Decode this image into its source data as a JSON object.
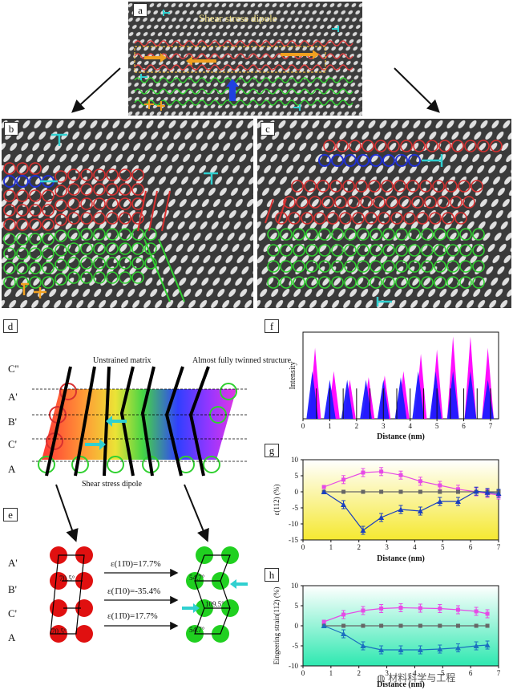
{
  "panels": {
    "a": {
      "label": "a",
      "annotation": "Shear stress dipole"
    },
    "b": {
      "label": "b"
    },
    "c": {
      "label": "c"
    },
    "d": {
      "label": "d",
      "layers": [
        "C''",
        "A'",
        "B'",
        "C'",
        "A"
      ],
      "unstrained_label": "Unstrained matrix",
      "twinned_label": "Almost fully twinned structure",
      "dipole_label": "Shear stress dipole"
    },
    "e": {
      "label": "e",
      "layers": [
        "A'",
        "B'",
        "C'",
        "A"
      ],
      "strains": [
        {
          "text": "ε(11̄0)=17.7%"
        },
        {
          "text": "ε(1̄10)=-35.4%"
        },
        {
          "text": "ε(11̄0)=17.7%"
        }
      ],
      "angles_left": [
        "70.5°",
        "70.5°"
      ],
      "angles_right": [
        "54.7°",
        "109.5°",
        "54.7°"
      ]
    },
    "f": {
      "label": "f"
    },
    "g": {
      "label": "g"
    },
    "h": {
      "label": "h"
    }
  },
  "chart_data": [
    {
      "type": "area",
      "panel": "f",
      "xlabel": "Distance (nm)",
      "ylabel": "Intensity",
      "xlim": [
        0,
        7.3
      ],
      "xticks": [
        "0",
        "1",
        "2",
        "3",
        "4",
        "5",
        "6",
        "7"
      ],
      "series": [
        {
          "color": "#ff00ff",
          "peaks_x": [
            0.45,
            1.15,
            1.75,
            2.45,
            3.05,
            3.75,
            4.4,
            5.0,
            5.6,
            6.25,
            6.9
          ],
          "peaks_y": [
            0.82,
            0.55,
            0.45,
            0.48,
            0.5,
            0.55,
            0.75,
            0.8,
            0.95,
            0.95,
            0.82
          ]
        },
        {
          "color": "#1a1aff",
          "peaks_x": [
            0.35,
            1.0,
            1.65,
            2.35,
            3.0,
            3.65,
            4.3,
            4.95,
            5.6,
            6.25,
            6.9
          ],
          "peaks_y": [
            0.55,
            0.45,
            0.45,
            0.45,
            0.45,
            0.48,
            0.55,
            0.55,
            0.55,
            0.55,
            0.45
          ]
        }
      ]
    },
    {
      "type": "line",
      "panel": "g",
      "xlabel": "Distance (nm)",
      "ylabel": "ε(112) (%)",
      "xlim": [
        0,
        7
      ],
      "ylim": [
        -15,
        10
      ],
      "xticks": [
        0,
        1,
        2,
        3,
        4,
        5,
        6,
        7
      ],
      "yticks": [
        10,
        5,
        0,
        -5,
        -10,
        -15
      ],
      "x": [
        0.75,
        1.45,
        2.15,
        2.8,
        3.5,
        4.2,
        4.9,
        5.55,
        6.2,
        6.6,
        7.0
      ],
      "series": [
        {
          "color": "#e64ae6",
          "values": [
            1.5,
            3.8,
            6.0,
            6.3,
            5.2,
            3.3,
            2.0,
            0.8,
            0.0,
            -0.5,
            -1.0
          ]
        },
        {
          "color": "#666666",
          "values": [
            0,
            0,
            0,
            0,
            0,
            0,
            0,
            0,
            0,
            0,
            0
          ]
        },
        {
          "color": "#1a3fbf",
          "values": [
            0,
            -4.0,
            -12.0,
            -8.0,
            -5.5,
            -6.0,
            -3.0,
            -3.0,
            0.2,
            -0.2,
            -0.5
          ]
        }
      ]
    },
    {
      "type": "line",
      "panel": "h",
      "xlabel": "Distance (nm)",
      "ylabel": "Eingeering strain(112) (%)",
      "xlim": [
        0,
        7
      ],
      "ylim": [
        -10,
        10
      ],
      "xticks": [
        0,
        1,
        2,
        3,
        4,
        5,
        6,
        7
      ],
      "yticks": [
        10,
        5,
        0,
        -5,
        -10
      ],
      "x": [
        0.75,
        1.45,
        2.15,
        2.8,
        3.5,
        4.2,
        4.9,
        5.55,
        6.2,
        6.6
      ],
      "series": [
        {
          "color": "#e64ae6",
          "values": [
            1.0,
            2.8,
            3.8,
            4.3,
            4.5,
            4.4,
            4.3,
            4.0,
            3.6,
            3.0
          ]
        },
        {
          "color": "#666666",
          "values": [
            0,
            0,
            0,
            0,
            0,
            0,
            0,
            0,
            0,
            0
          ]
        },
        {
          "color": "#1a6fbf",
          "values": [
            0,
            -2.0,
            -5.0,
            -6.0,
            -6.0,
            -6.0,
            -5.8,
            -5.5,
            -5.0,
            -4.8
          ]
        }
      ]
    }
  ],
  "watermark": "材料科学与工程"
}
